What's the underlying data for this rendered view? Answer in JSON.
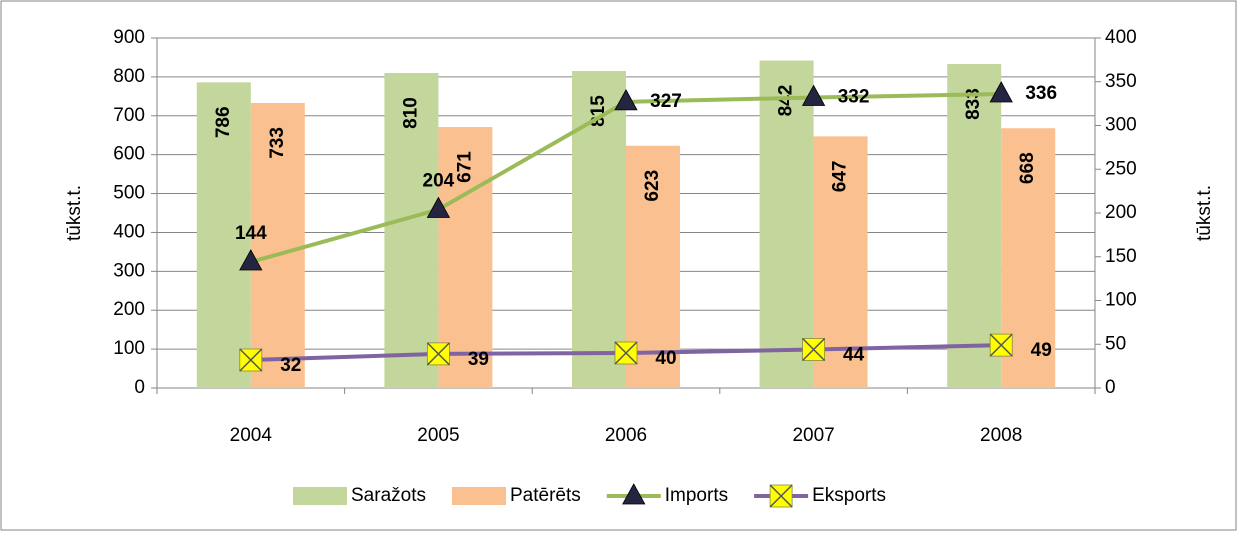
{
  "chart_data": {
    "type": "bar",
    "categories": [
      "2004",
      "2005",
      "2006",
      "2007",
      "2008"
    ],
    "y_label": "tūkst.t.",
    "y2_label": "tūkst.t.",
    "ylim": [
      0,
      900
    ],
    "yticks": [
      0,
      100,
      200,
      300,
      400,
      500,
      600,
      700,
      800,
      900
    ],
    "y2lim": [
      0,
      400
    ],
    "y2ticks": [
      0,
      50,
      100,
      150,
      200,
      250,
      300,
      350,
      400
    ],
    "grid": true,
    "legend": "bottom",
    "series": [
      {
        "name": "Saražots",
        "type": "bar",
        "color": "#c3d69b",
        "values": [
          786,
          810,
          815,
          842,
          833
        ]
      },
      {
        "name": "Patērēts",
        "type": "bar",
        "color": "#fac090",
        "values": [
          733,
          671,
          623,
          647,
          668
        ]
      },
      {
        "name": "Imports",
        "type": "line",
        "axis": "y2",
        "color": "#9bbb59",
        "marker": "triangle",
        "marker_color": "#252542",
        "values": [
          144,
          204,
          327,
          332,
          336
        ]
      },
      {
        "name": "Eksports",
        "type": "line",
        "axis": "y2",
        "color": "#8064a2",
        "marker": "x",
        "marker_color": "#ffff00",
        "values": [
          32,
          39,
          40,
          44,
          49
        ]
      }
    ]
  }
}
